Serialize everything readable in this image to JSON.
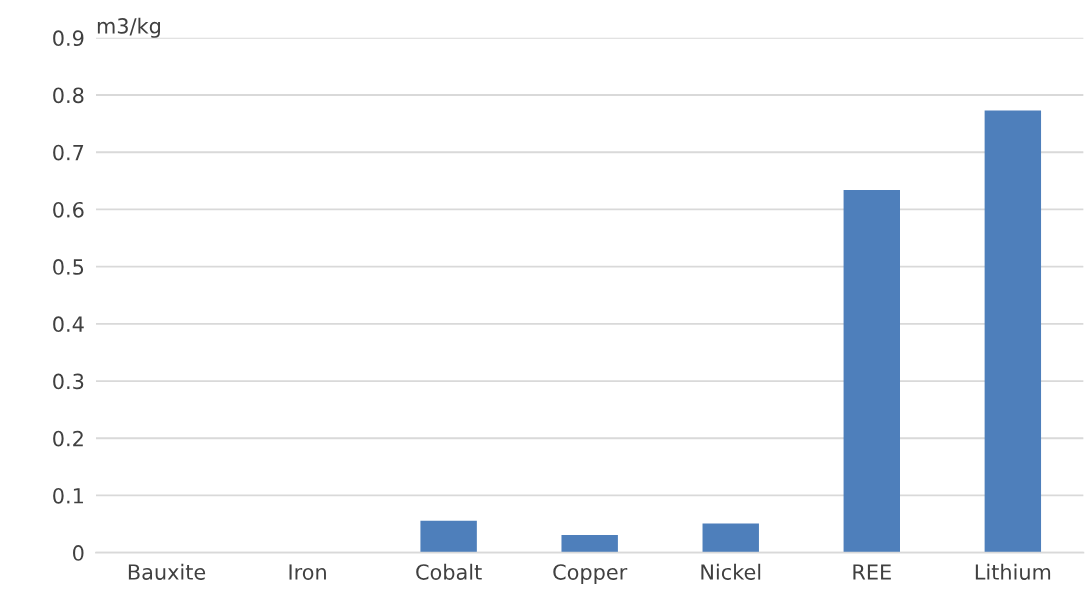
{
  "chart_data": {
    "type": "bar",
    "ylabel": "m3/kg",
    "categories": [
      "Bauxite",
      "Iron",
      "Cobalt",
      "Copper",
      "Nickel",
      "REE",
      "Lithium"
    ],
    "values": [
      null,
      null,
      0.056,
      0.031,
      0.051,
      0.634,
      0.773
    ],
    "color": "#4e7fbb",
    "ylim": [
      0,
      0.9
    ],
    "yticks": [
      0,
      0.1,
      0.2,
      0.3,
      0.4,
      0.5,
      0.6,
      0.7,
      0.8,
      0.9
    ],
    "grid": "y",
    "legend": false
  }
}
